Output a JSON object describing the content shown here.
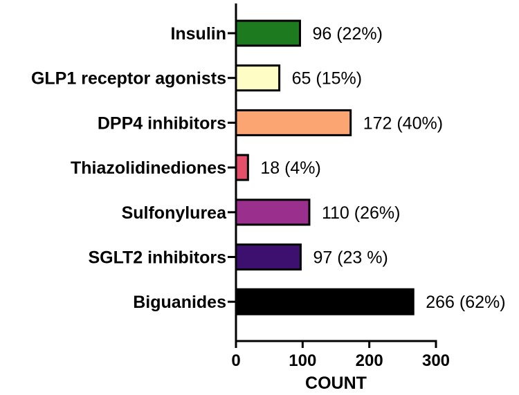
{
  "chart_data": {
    "type": "bar",
    "orientation": "horizontal",
    "title": "",
    "xlabel": "COUNT",
    "ylabel": "",
    "xlim": [
      0,
      300
    ],
    "ticks": [
      0,
      100,
      200,
      300
    ],
    "tick_labels": [
      "0",
      "100",
      "200",
      "300"
    ],
    "grid": false,
    "categories": [
      "Insulin",
      "GLP1 receptor agonists",
      "DPP4 inhibitors",
      "Thiazolidinediones",
      "Sulfonylurea",
      "SGLT2 inhibitors",
      "Biguanides"
    ],
    "values": [
      96,
      65,
      172,
      18,
      110,
      97,
      266
    ],
    "data_labels": [
      "96 (22%)",
      "65 (15%)",
      "172 (40%)",
      "18 (4%)",
      "110 (26%)",
      "97 (23 %)",
      "266 (62%)"
    ],
    "colors": [
      "#1e7a1e",
      "#fdfdc5",
      "#fba573",
      "#e54f6a",
      "#9b2f8e",
      "#3d1070",
      "#000000"
    ]
  }
}
